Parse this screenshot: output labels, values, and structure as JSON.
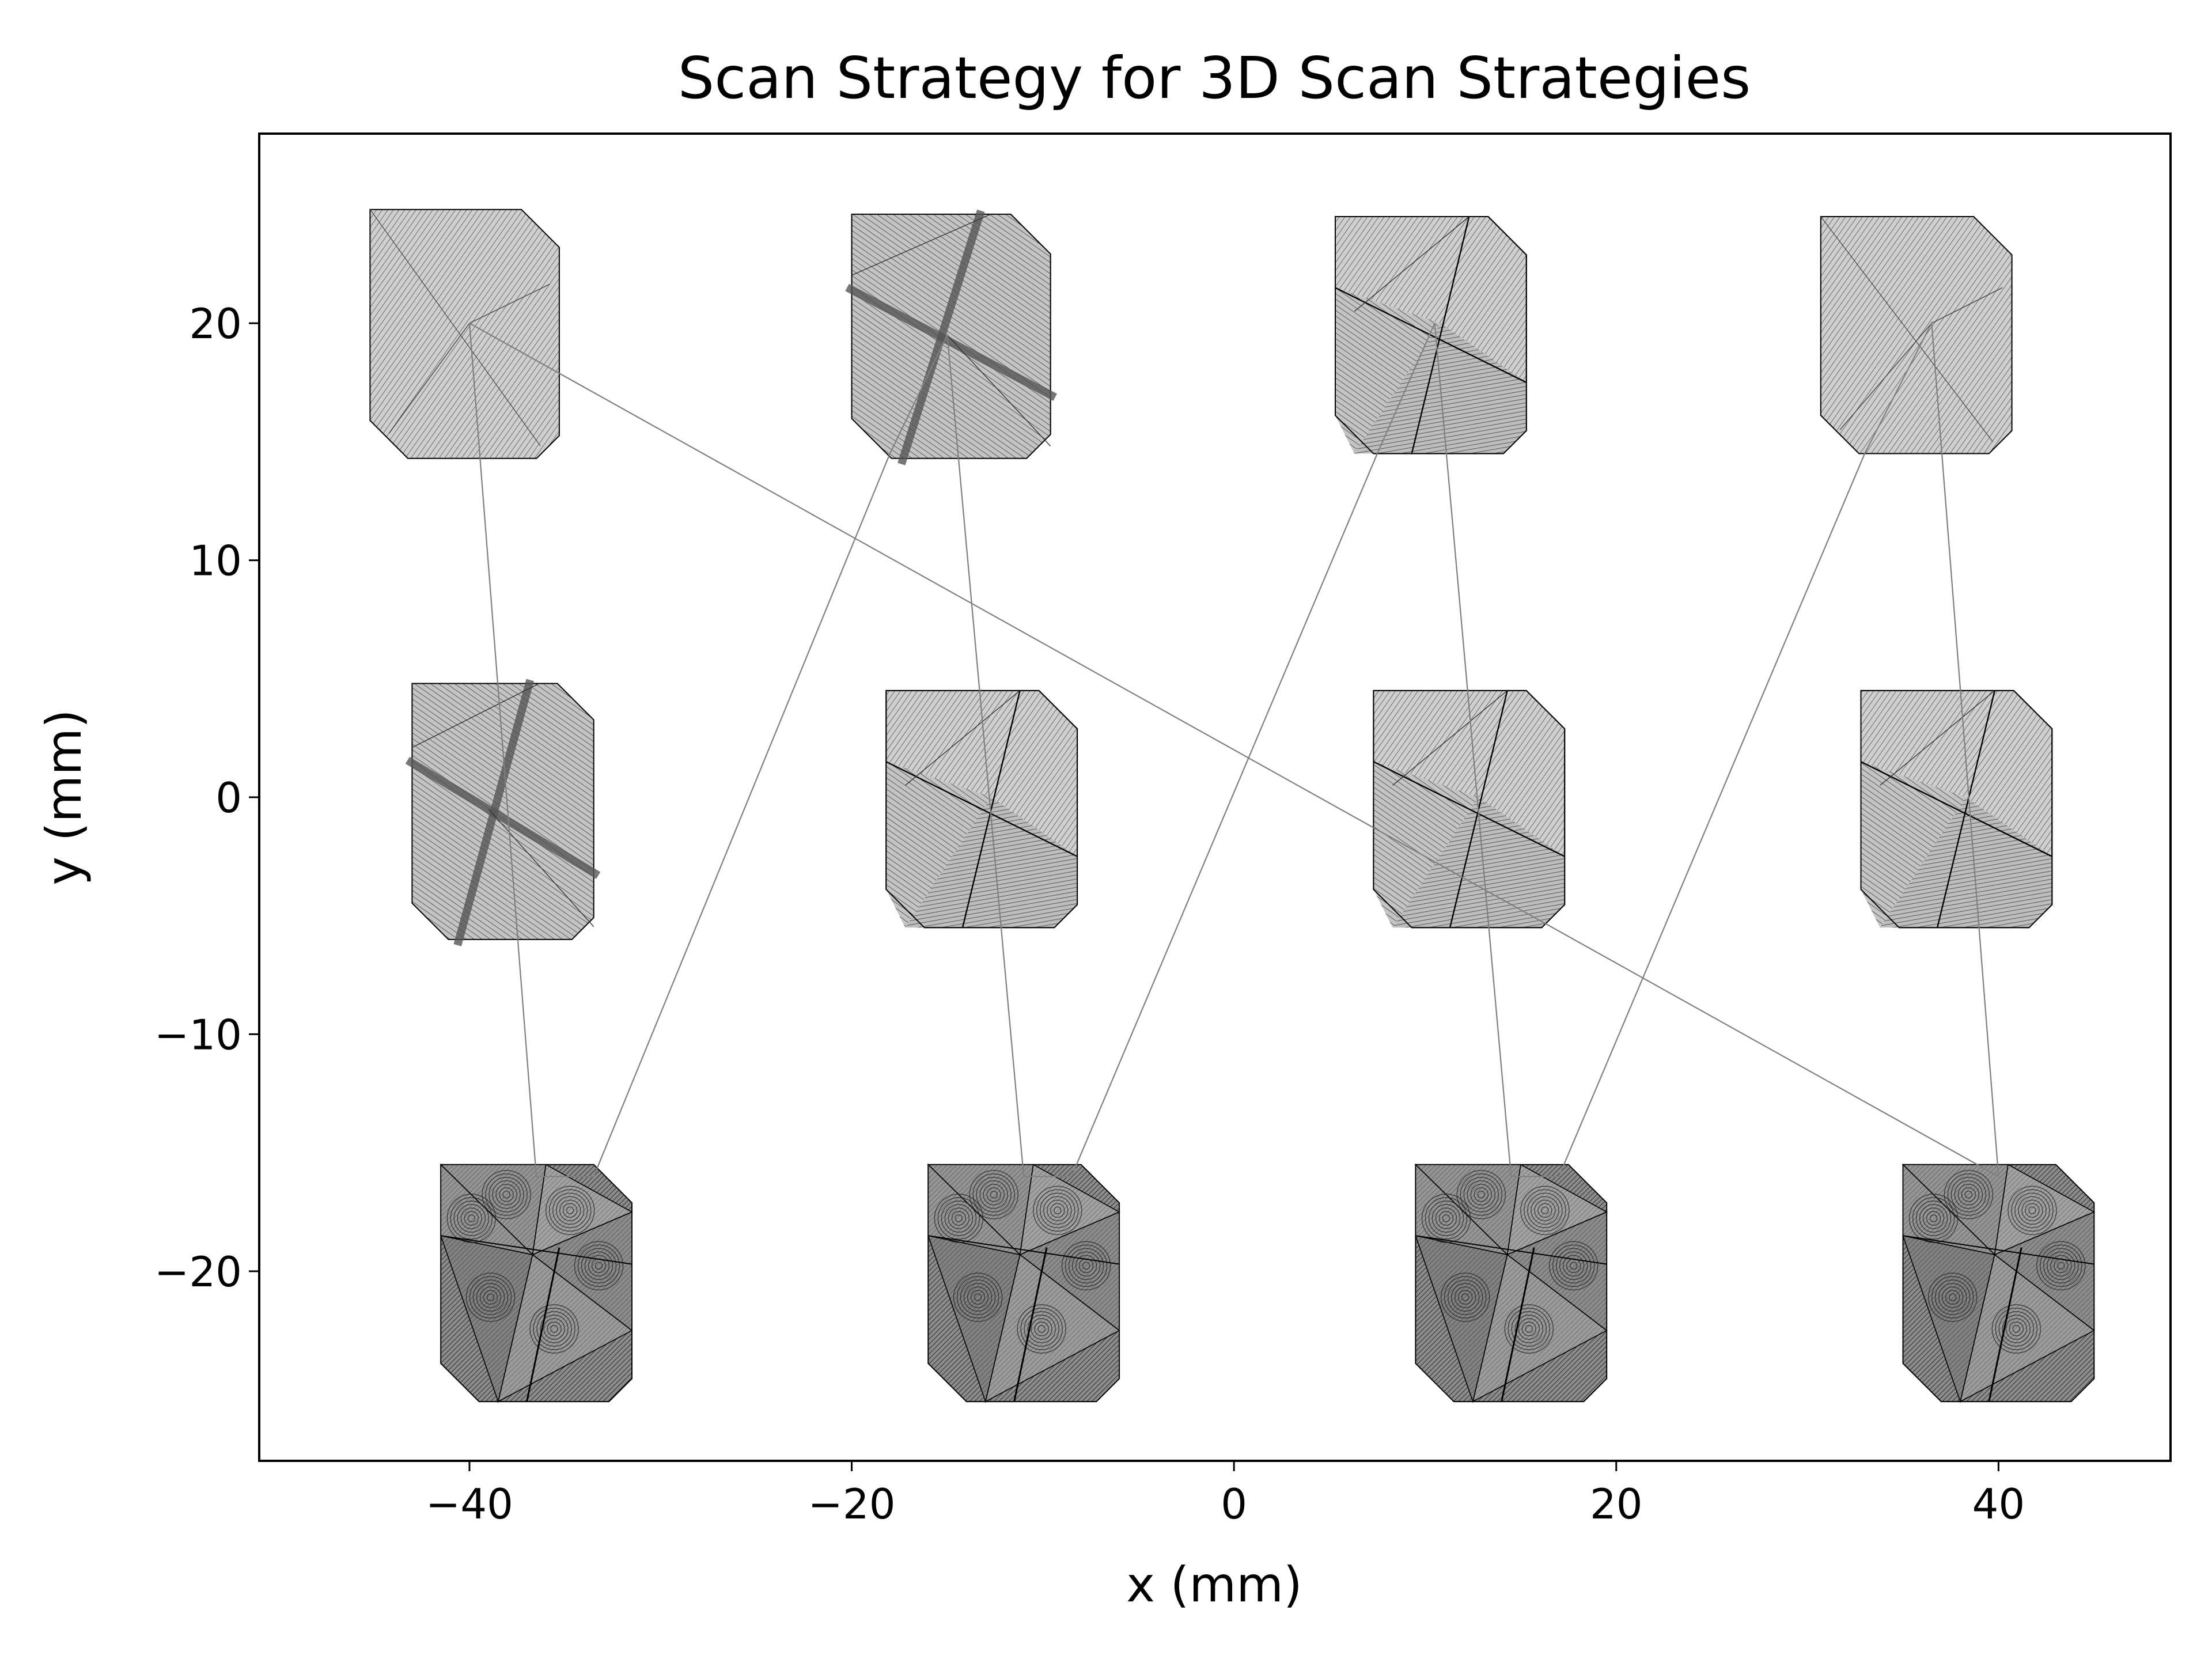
{
  "chart_data": {
    "type": "line",
    "title": "Scan Strategy for 3D Scan Strategies",
    "xlabel": "x (mm)",
    "ylabel": "y (mm)",
    "xlim": [
      -51,
      49
    ],
    "ylim": [
      -28,
      28
    ],
    "xticks": [
      -40,
      -20,
      0,
      20,
      40
    ],
    "yticks": [
      -20,
      -10,
      0,
      10,
      20
    ],
    "xtick_labels": [
      "−40",
      "−20",
      "0",
      "20",
      "40"
    ],
    "ytick_labels": [
      "−20",
      "−10",
      "0",
      "10",
      "20"
    ],
    "grid": false,
    "colors": {
      "hatch_light": "#bdbdbd",
      "hatch_mid": "#a0a0a0",
      "hatch_dark": "#707070",
      "edge": "#000000",
      "travel": "#7f7f7f"
    },
    "parts": [
      {
        "row": "top",
        "col": 1,
        "x_range": [
          -45.2,
          -35.3
        ],
        "y_range": [
          14.3,
          24.8
        ],
        "strategy": "hatch",
        "center": [
          -40.0,
          20.0
        ]
      },
      {
        "row": "top",
        "col": 2,
        "x_range": [
          -20.0,
          -9.6
        ],
        "y_range": [
          14.3,
          24.6
        ],
        "strategy": "cross",
        "center": [
          -15.0,
          19.5
        ]
      },
      {
        "row": "top",
        "col": 3,
        "x_range": [
          5.3,
          15.3
        ],
        "y_range": [
          14.5,
          24.5
        ],
        "strategy": "sector",
        "center": [
          10.5,
          19.5
        ]
      },
      {
        "row": "top",
        "col": 4,
        "x_range": [
          30.7,
          40.7
        ],
        "y_range": [
          14.5,
          24.5
        ],
        "strategy": "hatch",
        "center": [
          36.5,
          20.0
        ]
      },
      {
        "row": "middle",
        "col": 1,
        "x_range": [
          -43.0,
          -33.5
        ],
        "y_range": [
          -6.0,
          4.8
        ],
        "strategy": "cross",
        "center": [
          -39.0,
          -0.5
        ]
      },
      {
        "row": "middle",
        "col": 2,
        "x_range": [
          -18.2,
          -8.2
        ],
        "y_range": [
          -5.5,
          4.5
        ],
        "strategy": "sector",
        "center": [
          -13.0,
          -0.5
        ]
      },
      {
        "row": "middle",
        "col": 3,
        "x_range": [
          7.3,
          17.3
        ],
        "y_range": [
          -5.5,
          4.5
        ],
        "strategy": "sector",
        "center": [
          12.0,
          -0.5
        ]
      },
      {
        "row": "middle",
        "col": 4,
        "x_range": [
          32.8,
          42.8
        ],
        "y_range": [
          -5.5,
          4.5
        ],
        "strategy": "sector",
        "center": [
          37.5,
          -0.5
        ]
      },
      {
        "row": "bottom",
        "col": 1,
        "x_range": [
          -41.5,
          -31.5
        ],
        "y_range": [
          -25.5,
          -15.5
        ],
        "strategy": "spiral",
        "center": [
          -36.5,
          -20.5
        ]
      },
      {
        "row": "bottom",
        "col": 2,
        "x_range": [
          -16.0,
          -6.0
        ],
        "y_range": [
          -25.5,
          -15.5
        ],
        "strategy": "spiral",
        "center": [
          -11.0,
          -20.5
        ]
      },
      {
        "row": "bottom",
        "col": 3,
        "x_range": [
          9.5,
          19.5
        ],
        "y_range": [
          -25.5,
          -15.5
        ],
        "strategy": "spiral",
        "center": [
          14.5,
          -20.5
        ]
      },
      {
        "row": "bottom",
        "col": 4,
        "x_range": [
          35.0,
          45.0
        ],
        "y_range": [
          -25.5,
          -15.5
        ],
        "strategy": "spiral",
        "center": [
          40.0,
          -20.5
        ]
      }
    ],
    "series": [
      {
        "x": [
          -40.0,
          -36.5,
          -33.5,
          -18.0,
          -15.0,
          -11.0,
          -8.5,
          7.5,
          10.5,
          14.5,
          17.0,
          33.0,
          36.5,
          40.0,
          -40.0
        ],
        "y": [
          20.0,
          -16.0,
          -16.0,
          14.5,
          19.5,
          -16.0,
          -16.0,
          14.5,
          20.0,
          -16.0,
          -16.0,
          14.5,
          20.0,
          -16.0,
          20.0
        ]
      }
    ]
  }
}
